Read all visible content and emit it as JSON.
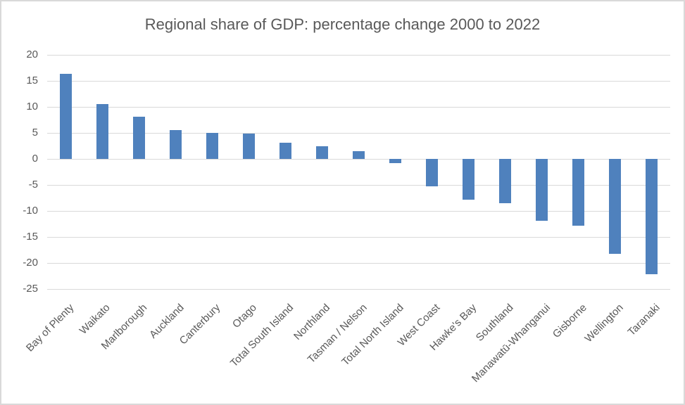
{
  "chart_data": {
    "type": "bar",
    "title": "Regional share of GDP: percentage change 2000 to 2022",
    "categories": [
      "Bay of Plenty",
      "Waikato",
      "Marlborough",
      "Auckland",
      "Canterbury",
      "Otago",
      "Total South Island",
      "Northland",
      "Tasman / Nelson",
      "Total North Island",
      "West Coast",
      "Hawke's Bay",
      "Southland",
      "Manawatū-Whanganui",
      "Gisborne",
      "Wellington",
      "Taranaki"
    ],
    "values": [
      16.3,
      10.6,
      8.1,
      5.5,
      5.0,
      4.8,
      3.1,
      2.4,
      1.5,
      -0.8,
      -5.3,
      -7.8,
      -8.5,
      -11.9,
      -12.9,
      -18.2,
      -22.1
    ],
    "xlabel": "",
    "ylabel": "",
    "ylim": [
      -25,
      20
    ],
    "yticks": [
      20,
      15,
      10,
      5,
      0,
      -5,
      -10,
      -15,
      -20,
      -25
    ],
    "grid": true,
    "legend_position": "none",
    "colors": {
      "bar": "#4F81BD",
      "gridline": "#D9D9D9",
      "text": "#595959",
      "border": "#D9D9D9",
      "background": "#FFFFFF"
    }
  }
}
